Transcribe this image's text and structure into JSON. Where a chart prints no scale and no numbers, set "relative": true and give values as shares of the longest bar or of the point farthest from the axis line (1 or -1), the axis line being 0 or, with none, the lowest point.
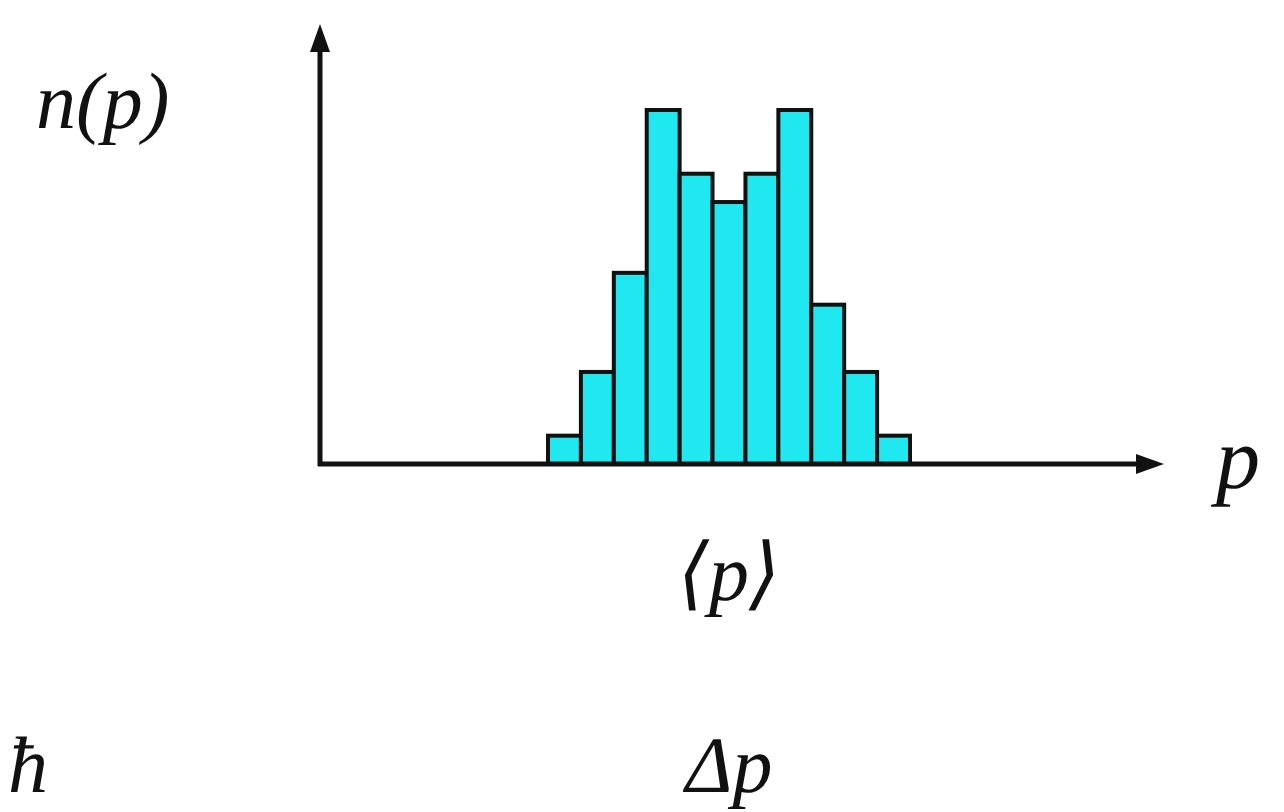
{
  "chart_data": {
    "type": "bar",
    "categories": [
      null,
      null,
      null,
      null,
      null,
      null,
      null,
      null,
      null,
      null,
      null
    ],
    "values": [
      0.08,
      0.26,
      0.54,
      1,
      0.82,
      0.74,
      0.82,
      1,
      0.45,
      0.26,
      0.08
    ],
    "color": "#20e8f0",
    "relative": true,
    "xlabel": "p",
    "ylabel": "n(p)",
    "annotations": [
      "⟨p⟩",
      "ħ",
      "Δp"
    ]
  }
}
